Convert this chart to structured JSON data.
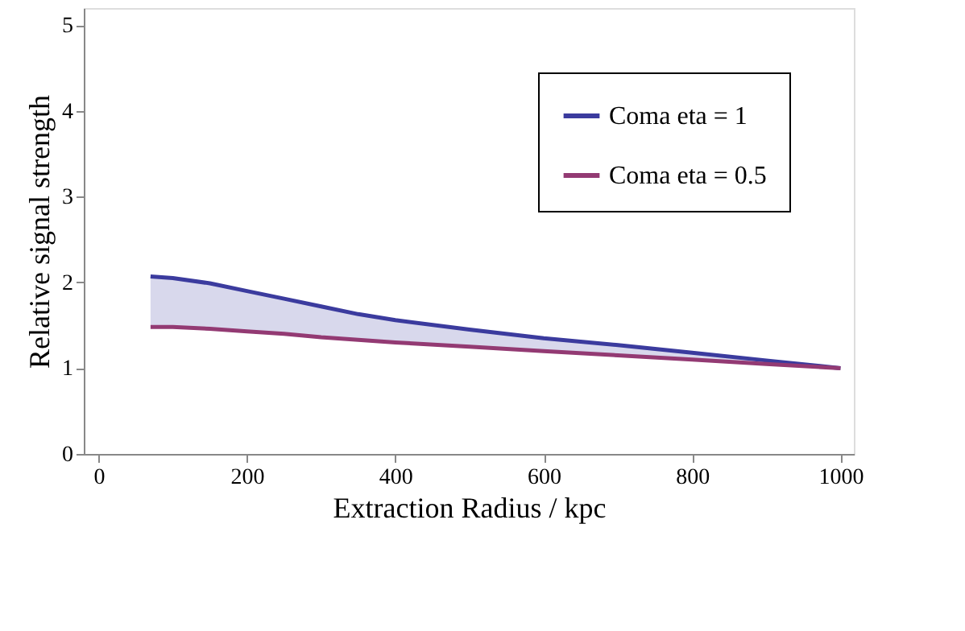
{
  "chart_data": {
    "type": "line",
    "xlabel": "Extraction Radius / kpc",
    "ylabel": "Relative signal strength",
    "x": [
      70,
      100,
      150,
      200,
      250,
      300,
      350,
      400,
      500,
      600,
      700,
      800,
      900,
      1000
    ],
    "series": [
      {
        "name": "Coma eta = 1",
        "color": "#3b3b9e",
        "values": [
          2.07,
          2.05,
          1.99,
          1.9,
          1.81,
          1.72,
          1.63,
          1.56,
          1.45,
          1.35,
          1.27,
          1.18,
          1.09,
          1.0
        ],
        "lower": [
          1.48,
          1.48,
          1.46,
          1.43,
          1.4,
          1.36,
          1.33,
          1.3,
          1.25,
          1.2,
          1.15,
          1.1,
          1.05,
          1.0
        ],
        "upper": [
          2.07,
          2.05,
          1.99,
          1.9,
          1.81,
          1.72,
          1.63,
          1.56,
          1.45,
          1.35,
          1.27,
          1.18,
          1.09,
          1.0
        ]
      },
      {
        "name": "Coma eta = 0.5",
        "color": "#933a73",
        "values": [
          1.48,
          1.48,
          1.46,
          1.43,
          1.4,
          1.36,
          1.33,
          1.3,
          1.25,
          1.2,
          1.15,
          1.1,
          1.05,
          1.0
        ]
      }
    ],
    "xlim": [
      -20,
      1018
    ],
    "ylim": [
      0,
      5.2
    ],
    "xticks": [
      0,
      200,
      400,
      600,
      800,
      1000
    ],
    "yticks": [
      0,
      1,
      2,
      3,
      4,
      5
    ],
    "grid": false,
    "legend": "top right",
    "marker": "none",
    "line_style": "solid"
  }
}
